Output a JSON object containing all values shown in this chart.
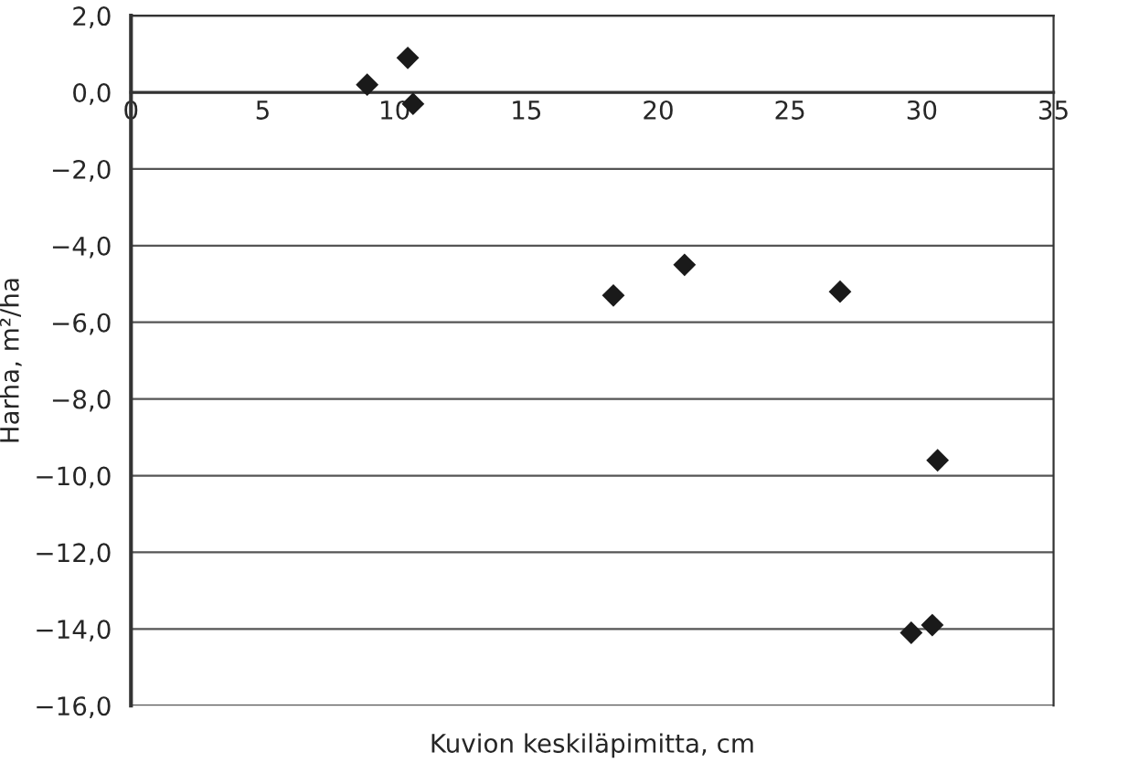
{
  "chart_data": {
    "type": "scatter",
    "xlabel": "Kuvion keskiläpimitta, cm",
    "ylabel": "Harha, m²/ha",
    "series": [
      {
        "color": "#1a1a1a",
        "x": [
          8.96,
          10.5,
          10.7,
          18.3,
          21.0,
          26.9,
          30.6,
          29.6,
          30.4
        ],
        "values": [
          0.2,
          0.9,
          -0.3,
          -5.3,
          -4.5,
          -5.2,
          -9.6,
          -14.1,
          -13.9
        ]
      }
    ],
    "marker": "diamond",
    "grid": "y",
    "legend": false,
    "xlim": [
      0,
      35
    ],
    "xticks": [
      0,
      5,
      10,
      15,
      20,
      25,
      30,
      35
    ],
    "ylim": [
      -16,
      2
    ],
    "yticks": [
      {
        "value": 2,
        "label": "2,0"
      },
      {
        "value": 0,
        "label": "0,0"
      },
      {
        "value": -2,
        "label": "−2,0"
      },
      {
        "value": -4,
        "label": "−4,0"
      },
      {
        "value": -6,
        "label": "−6,0"
      },
      {
        "value": -8,
        "label": "−8,0"
      },
      {
        "value": -10,
        "label": "−10,0"
      },
      {
        "value": -12,
        "label": "−12,0"
      },
      {
        "value": -14,
        "label": "−14,0"
      },
      {
        "value": -16,
        "label": "−16,0"
      }
    ]
  }
}
